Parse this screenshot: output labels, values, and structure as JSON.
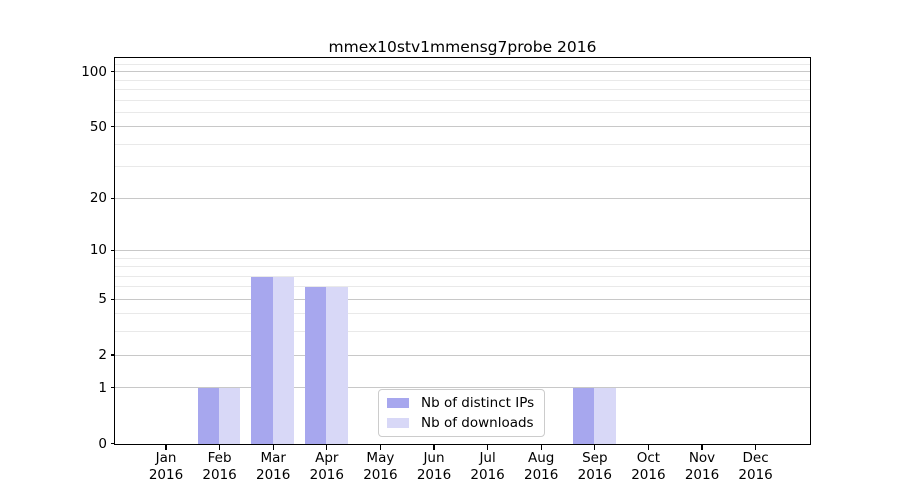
{
  "figure": {
    "background": "#ffffff"
  },
  "chart_data": {
    "type": "bar",
    "title": "mmex10stv1mmensg7probe 2016",
    "categories": [
      "Jan",
      "Feb",
      "Mar",
      "Apr",
      "May",
      "Jun",
      "Jul",
      "Aug",
      "Sep",
      "Oct",
      "Nov",
      "Dec"
    ],
    "category_year": "2016",
    "series": [
      {
        "name": "Nb of distinct IPs",
        "color": "#a7a7ee",
        "values": [
          0,
          1,
          7,
          6,
          0,
          0,
          0,
          0,
          1,
          0,
          0,
          0
        ]
      },
      {
        "name": "Nb of downloads",
        "color": "#d8d8f7",
        "values": [
          0,
          1,
          7,
          6,
          0,
          0,
          0,
          0,
          1,
          0,
          0,
          0
        ]
      }
    ],
    "xlabel": "",
    "ylabel": "",
    "yscale": "log1p",
    "ylim": [
      0,
      118
    ],
    "yticks": [
      0,
      1,
      2,
      5,
      10,
      20,
      50,
      100
    ],
    "yticks_minor": [
      3,
      4,
      6,
      7,
      8,
      9,
      30,
      40,
      60,
      70,
      80,
      90,
      110
    ],
    "grid": true,
    "legend_position": "lower-center",
    "colors": {
      "major_grid": "#c8c8c8",
      "minor_grid": "#e9e9e9",
      "axis_frame": "#000000",
      "text": "#000000"
    }
  }
}
